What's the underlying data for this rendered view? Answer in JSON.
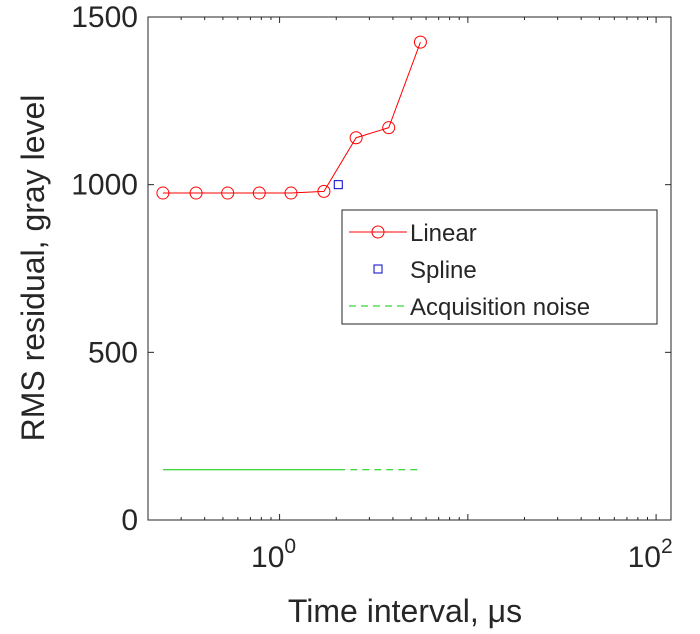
{
  "chart_data": {
    "type": "line",
    "xscale": "log",
    "xlabel": "Time interval, μs",
    "ylabel": "RMS residual, gray level",
    "xlim": [
      0.2,
      120
    ],
    "ylim": [
      0,
      1500
    ],
    "x_ticks": [
      {
        "value": 1,
        "base": "10",
        "exp": "0"
      },
      {
        "value": 100,
        "base": "10",
        "exp": "2"
      }
    ],
    "y_ticks": [
      {
        "value": 0,
        "label": "0"
      },
      {
        "value": 500,
        "label": "500"
      },
      {
        "value": 1000,
        "label": "1000"
      },
      {
        "value": 1500,
        "label": "1500"
      }
    ],
    "grid": false,
    "legend_position": "center-right",
    "series": [
      {
        "name": "Linear",
        "color": "#ff0000",
        "style": "solid-line-circle-markers",
        "x": [
          0.24,
          0.36,
          0.53,
          0.78,
          1.15,
          1.72,
          2.55,
          3.8,
          5.6
        ],
        "y": [
          975,
          975,
          975,
          975,
          975,
          980,
          1140,
          1170,
          1425
        ]
      },
      {
        "name": "Spline",
        "color": "#0000cc",
        "style": "square-markers",
        "x": [
          2.05
        ],
        "y": [
          1000
        ]
      },
      {
        "name": "Acquisition noise",
        "color": "#00cc00",
        "style": "dashed-line",
        "x": [
          0.24,
          2.05,
          5.6
        ],
        "y": [
          150,
          150,
          150
        ]
      }
    ]
  }
}
